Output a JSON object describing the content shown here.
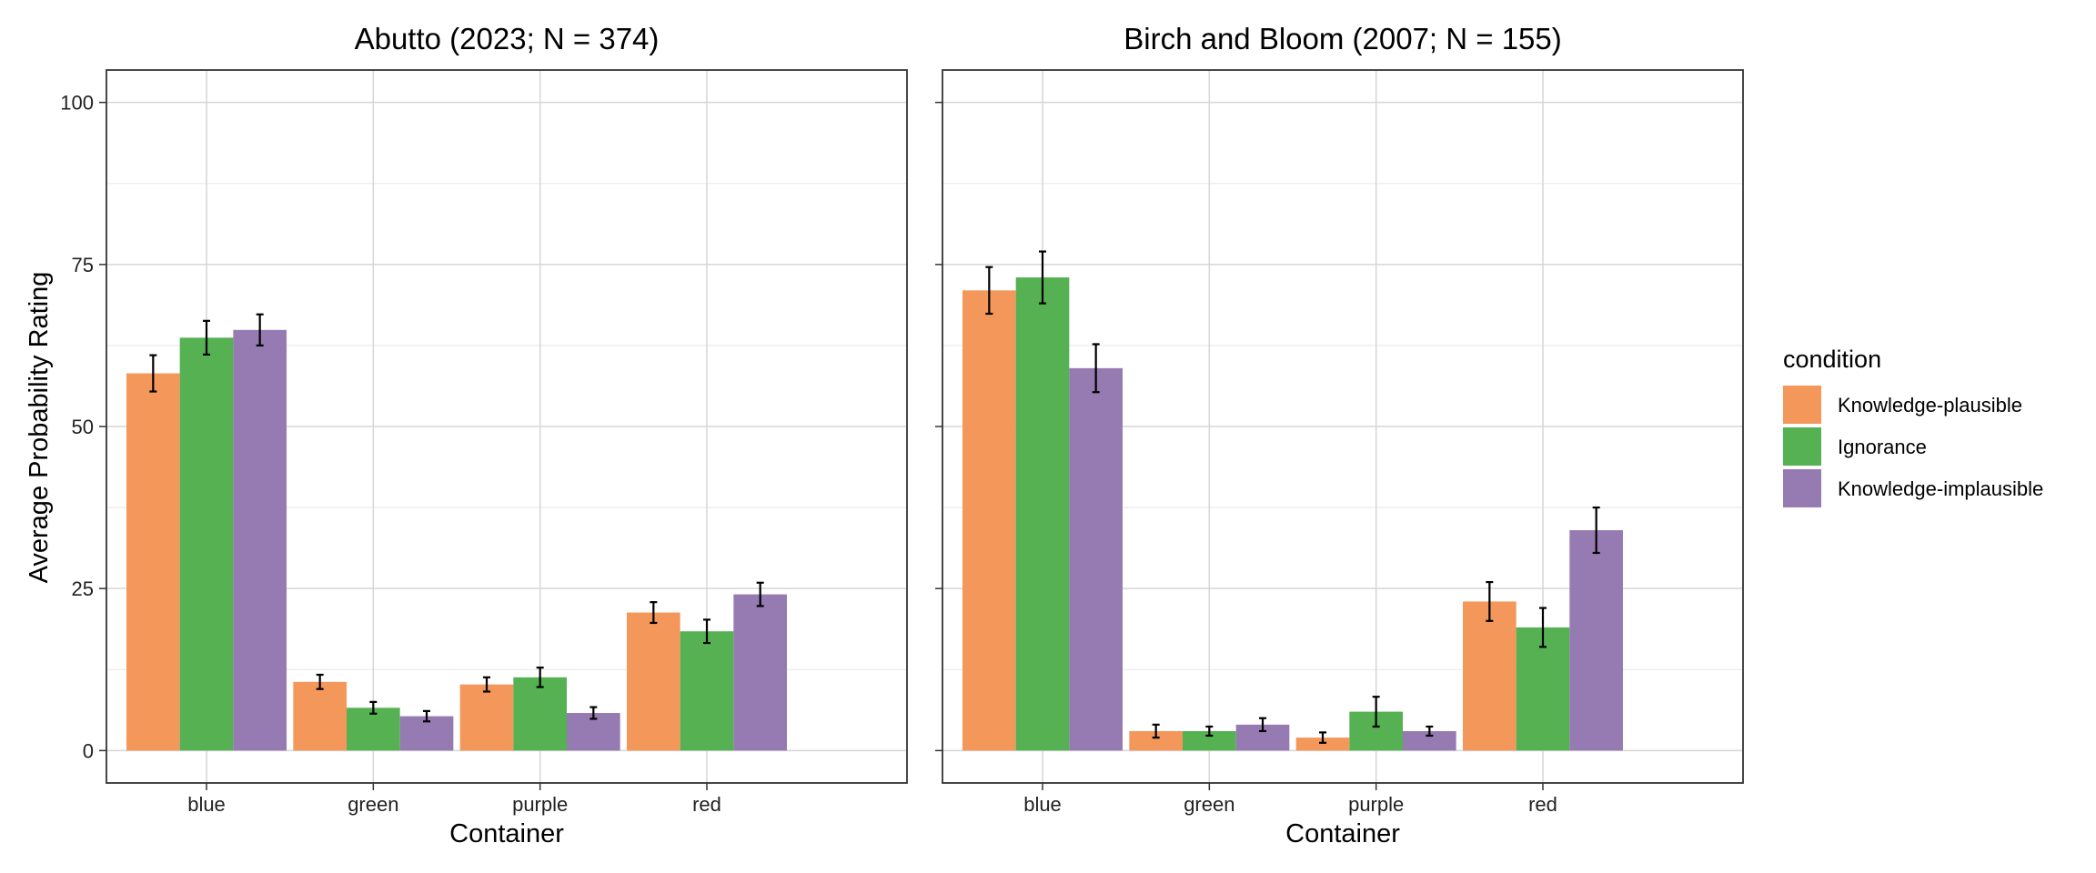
{
  "chart_data": {
    "type": "bar",
    "ylabel": "Average Probability Rating",
    "ylim": [
      -5,
      105
    ],
    "yticks": [
      0,
      25,
      50,
      75,
      100
    ],
    "grid": true,
    "legend": {
      "title": "condition",
      "position": "right",
      "entries": [
        {
          "name": "Knowledge-plausible",
          "color": "#F4975B"
        },
        {
          "name": "Ignorance",
          "color": "#55B152"
        },
        {
          "name": "Knowledge-implausible",
          "color": "#957BB2"
        }
      ]
    },
    "panels": [
      {
        "title": "Abutto (2023; N = 374)",
        "xlabel": "Container",
        "categories": [
          "blue",
          "green",
          "purple",
          "red"
        ],
        "series": [
          {
            "name": "Knowledge-plausible",
            "values": [
              58.2,
              10.6,
              10.2,
              21.3
            ],
            "errors": [
              2.8,
              1.1,
              1.1,
              1.6
            ]
          },
          {
            "name": "Ignorance",
            "values": [
              63.7,
              6.6,
              11.3,
              18.4
            ],
            "errors": [
              2.6,
              0.9,
              1.5,
              1.8
            ]
          },
          {
            "name": "Knowledge-implausible",
            "values": [
              64.9,
              5.3,
              5.8,
              24.1
            ],
            "errors": [
              2.4,
              0.8,
              0.9,
              1.8
            ]
          }
        ]
      },
      {
        "title": "Birch and Bloom (2007; N = 155)",
        "xlabel": "Container",
        "categories": [
          "blue",
          "green",
          "purple",
          "red"
        ],
        "series": [
          {
            "name": "Knowledge-plausible",
            "values": [
              71.0,
              3.0,
              2.0,
              23.0
            ],
            "errors": [
              3.6,
              1.0,
              0.8,
              3.0
            ]
          },
          {
            "name": "Ignorance",
            "values": [
              73.0,
              3.0,
              6.0,
              19.0
            ],
            "errors": [
              4.0,
              0.7,
              2.3,
              3.0
            ]
          },
          {
            "name": "Knowledge-implausible",
            "values": [
              59.0,
              4.0,
              3.0,
              34.0
            ],
            "errors": [
              3.7,
              1.0,
              0.7,
              3.5
            ]
          }
        ]
      }
    ]
  }
}
